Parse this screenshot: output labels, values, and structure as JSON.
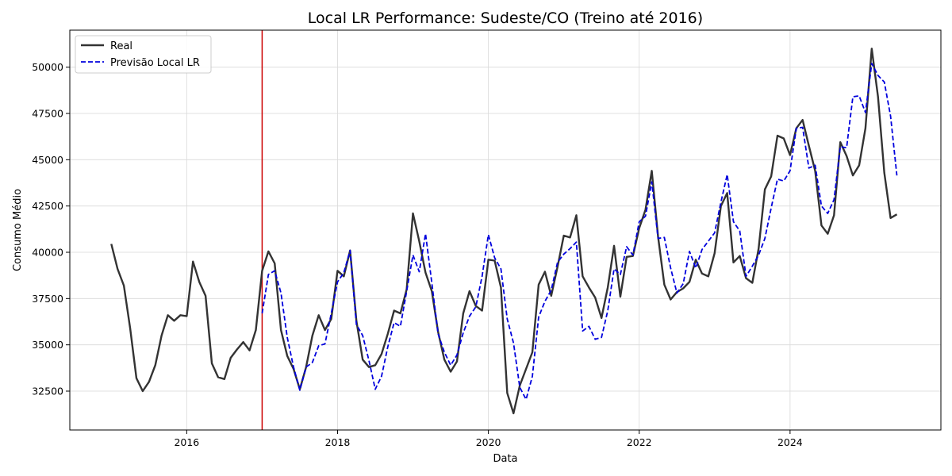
{
  "chart_data": {
    "type": "line",
    "title": "Local LR Performance: Sudeste/CO (Treino até 2016)",
    "xlabel": "Data",
    "ylabel": "Consumo Médio",
    "x_ticks": [
      "2016",
      "2018",
      "2020",
      "2022",
      "2024"
    ],
    "y_ticks": [
      "32500",
      "35000",
      "37500",
      "40000",
      "42500",
      "45000",
      "47500",
      "50000"
    ],
    "xlim": [
      2014.45,
      2026.0
    ],
    "ylim": [
      30400,
      52000
    ],
    "grid": true,
    "legend_position": "upper-left",
    "train_cutoff": 2017.0,
    "colors": {
      "real": "#333333",
      "pred": "#0000dd",
      "cutoff": "#cc0000"
    },
    "series": [
      {
        "name": "Real",
        "x_start": 2015.0,
        "step": 0.08333,
        "values": [
          40450,
          39100,
          38200,
          35900,
          33200,
          32500,
          33000,
          33900,
          35500,
          36600,
          36300,
          36600,
          36550,
          39500,
          38400,
          37650,
          34000,
          33250,
          33150,
          34300,
          34750,
          35150,
          34700,
          35800,
          39000,
          40050,
          39400,
          35800,
          34400,
          33700,
          32600,
          33800,
          35500,
          36600,
          35800,
          36400,
          39000,
          38700,
          40100,
          36300,
          34200,
          33800,
          33900,
          34500,
          35600,
          36850,
          36700,
          38000,
          42100,
          40600,
          38900,
          37900,
          35700,
          34200,
          33550,
          34100,
          36700,
          37900,
          37100,
          36850,
          39600,
          39550,
          38100,
          32400,
          31300,
          32800,
          33700,
          34600,
          38250,
          38950,
          37650,
          39200,
          40900,
          40800,
          42000,
          38700,
          38100,
          37550,
          36450,
          38100,
          40350,
          37600,
          39750,
          39800,
          41300,
          42300,
          44400,
          40850,
          38250,
          37450,
          37850,
          38050,
          38400,
          39600,
          38850,
          38700,
          39950,
          42500,
          43200,
          39450,
          39800,
          38600,
          38350,
          40200,
          43400,
          44100,
          46300,
          46150,
          45250,
          46700,
          47150,
          45750,
          44400,
          41450,
          41000,
          42000,
          45950,
          45200,
          44150,
          44700,
          46700,
          51000,
          48400,
          44300,
          41850,
          42050
        ]
      },
      {
        "name": "Previsão Local LR",
        "x_start": 2017.0,
        "step": 0.08333,
        "values": [
          36700,
          38800,
          39000,
          37800,
          35400,
          33800,
          32550,
          33800,
          34050,
          34950,
          35050,
          36700,
          38400,
          38900,
          40100,
          36100,
          35500,
          34150,
          32600,
          33300,
          34900,
          36200,
          36000,
          37900,
          39850,
          38950,
          41000,
          38350,
          35600,
          34600,
          33900,
          34450,
          35650,
          36550,
          37050,
          38700,
          40950,
          39700,
          39100,
          36400,
          35100,
          32700,
          32050,
          33300,
          36500,
          37350,
          37950,
          39450,
          39900,
          40200,
          40550,
          35750,
          36000,
          35300,
          35400,
          36850,
          39100,
          38800,
          40300,
          39850,
          41650,
          41950,
          43800,
          40750,
          40800,
          39150,
          37800,
          38300,
          40050,
          39150,
          40150,
          40600,
          41050,
          42700,
          44200,
          41650,
          41150,
          38700,
          39250,
          39850,
          40750,
          42400,
          43950,
          43850,
          44400,
          46700,
          46750,
          44550,
          44700,
          42500,
          42100,
          42850,
          45700,
          45650,
          48400,
          48450,
          47550,
          50200,
          49550,
          49200,
          47350,
          44150
        ]
      }
    ]
  }
}
